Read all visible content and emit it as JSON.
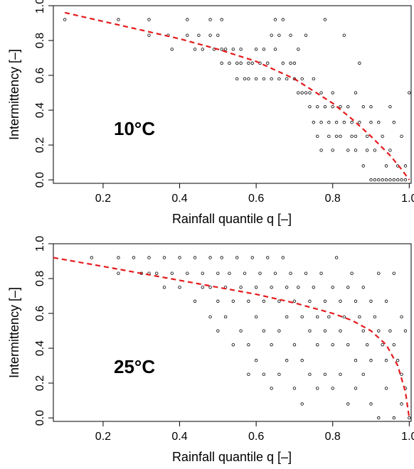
{
  "chart_data": [
    {
      "type": "scatter",
      "xlabel": "Rainfall quantile q [–]",
      "ylabel": "Intermittency [–]",
      "annotation": "10°C",
      "xlim": [
        0.07,
        1.005
      ],
      "ylim": [
        -0.02,
        1.0
      ],
      "xticks": [
        "0.2",
        "0.4",
        "0.6",
        "0.8",
        "1.0"
      ],
      "yticks": [
        "0.0",
        "0.2",
        "0.4",
        "0.6",
        "0.8",
        "1.0"
      ],
      "grid": false,
      "fit_color": "#e41a1c",
      "fit_curve": {
        "x": [
          0.1,
          0.2,
          0.3,
          0.4,
          0.5,
          0.6,
          0.7,
          0.8,
          0.85,
          0.9,
          0.95,
          0.98,
          1.0
        ],
        "y": [
          0.96,
          0.91,
          0.86,
          0.81,
          0.75,
          0.68,
          0.58,
          0.44,
          0.35,
          0.25,
          0.14,
          0.06,
          0.0
        ]
      },
      "points": {
        "x": [
          0.1,
          0.24,
          0.32,
          0.32,
          0.37,
          0.38,
          0.42,
          0.42,
          0.44,
          0.45,
          0.46,
          0.48,
          0.48,
          0.49,
          0.5,
          0.51,
          0.51,
          0.51,
          0.52,
          0.53,
          0.54,
          0.55,
          0.55,
          0.56,
          0.56,
          0.57,
          0.58,
          0.58,
          0.59,
          0.6,
          0.6,
          0.61,
          0.62,
          0.62,
          0.63,
          0.64,
          0.64,
          0.65,
          0.65,
          0.66,
          0.66,
          0.67,
          0.67,
          0.68,
          0.69,
          0.69,
          0.7,
          0.7,
          0.71,
          0.71,
          0.72,
          0.72,
          0.73,
          0.73,
          0.74,
          0.74,
          0.75,
          0.75,
          0.76,
          0.76,
          0.77,
          0.77,
          0.77,
          0.78,
          0.78,
          0.79,
          0.79,
          0.8,
          0.8,
          0.8,
          0.81,
          0.81,
          0.82,
          0.82,
          0.83,
          0.83,
          0.84,
          0.84,
          0.85,
          0.85,
          0.86,
          0.86,
          0.86,
          0.87,
          0.87,
          0.88,
          0.88,
          0.89,
          0.89,
          0.9,
          0.9,
          0.9,
          0.91,
          0.91,
          0.92,
          0.92,
          0.93,
          0.93,
          0.94,
          0.94,
          0.95,
          0.95,
          0.95,
          0.96,
          0.96,
          0.97,
          0.97,
          0.98,
          0.98,
          0.99,
          0.99,
          1.0
        ],
        "y": [
          0.92,
          0.92,
          0.92,
          0.83,
          0.83,
          0.75,
          0.92,
          0.83,
          0.75,
          0.83,
          0.75,
          0.92,
          0.83,
          0.75,
          0.83,
          0.92,
          0.75,
          0.67,
          0.75,
          0.67,
          0.75,
          0.67,
          0.58,
          0.75,
          0.67,
          0.58,
          0.67,
          0.58,
          0.67,
          0.75,
          0.58,
          0.67,
          0.58,
          0.75,
          0.67,
          0.83,
          0.58,
          0.92,
          0.75,
          0.83,
          0.58,
          0.92,
          0.67,
          0.58,
          0.67,
          0.83,
          0.67,
          0.58,
          0.75,
          0.5,
          0.58,
          0.5,
          0.83,
          0.5,
          0.5,
          0.42,
          0.58,
          0.33,
          0.42,
          0.25,
          0.5,
          0.33,
          0.17,
          0.42,
          0.92,
          0.25,
          0.33,
          0.42,
          0.5,
          0.17,
          0.25,
          0.33,
          0.42,
          0.25,
          0.83,
          0.33,
          0.17,
          0.42,
          0.25,
          0.33,
          0.5,
          0.17,
          0.25,
          0.67,
          0.33,
          0.42,
          0.08,
          0.25,
          0.17,
          0.33,
          0.42,
          0.0,
          0.17,
          0.0,
          0.33,
          0.0,
          0.25,
          0.0,
          0.08,
          0.0,
          0.42,
          0.17,
          0.0,
          0.33,
          0.0,
          0.08,
          0.0,
          0.25,
          0.0,
          0.08,
          0.0,
          0.5
        ]
      }
    },
    {
      "type": "scatter",
      "xlabel": "Rainfall quantile q [–]",
      "ylabel": "Intermittency [–]",
      "annotation": "25°C",
      "xlim": [
        0.07,
        1.005
      ],
      "ylim": [
        -0.02,
        1.0
      ],
      "xticks": [
        "0.2",
        "0.4",
        "0.6",
        "0.8",
        "1.0"
      ],
      "yticks": [
        "0.0",
        "0.2",
        "0.4",
        "0.6",
        "0.8",
        "1.0"
      ],
      "grid": false,
      "fit_color": "#e41a1c",
      "fit_curve": {
        "x": [
          0.07,
          0.2,
          0.3,
          0.4,
          0.5,
          0.6,
          0.7,
          0.8,
          0.85,
          0.9,
          0.94,
          0.97,
          0.99,
          1.0
        ],
        "y": [
          0.92,
          0.87,
          0.83,
          0.79,
          0.75,
          0.71,
          0.66,
          0.6,
          0.56,
          0.5,
          0.42,
          0.3,
          0.15,
          0.0
        ]
      },
      "points": {
        "x": [
          0.17,
          0.24,
          0.24,
          0.28,
          0.3,
          0.32,
          0.32,
          0.34,
          0.36,
          0.36,
          0.38,
          0.4,
          0.4,
          0.42,
          0.44,
          0.44,
          0.46,
          0.46,
          0.48,
          0.48,
          0.48,
          0.5,
          0.5,
          0.5,
          0.51,
          0.52,
          0.52,
          0.53,
          0.54,
          0.54,
          0.55,
          0.56,
          0.56,
          0.57,
          0.58,
          0.58,
          0.58,
          0.59,
          0.6,
          0.6,
          0.6,
          0.61,
          0.62,
          0.62,
          0.62,
          0.63,
          0.64,
          0.64,
          0.64,
          0.65,
          0.66,
          0.66,
          0.66,
          0.67,
          0.68,
          0.68,
          0.68,
          0.69,
          0.7,
          0.7,
          0.7,
          0.71,
          0.72,
          0.72,
          0.72,
          0.73,
          0.74,
          0.74,
          0.74,
          0.75,
          0.76,
          0.76,
          0.76,
          0.77,
          0.78,
          0.78,
          0.78,
          0.79,
          0.8,
          0.8,
          0.8,
          0.81,
          0.82,
          0.82,
          0.82,
          0.83,
          0.84,
          0.84,
          0.84,
          0.85,
          0.86,
          0.86,
          0.86,
          0.87,
          0.88,
          0.88,
          0.88,
          0.89,
          0.9,
          0.9,
          0.9,
          0.91,
          0.92,
          0.92,
          0.92,
          0.93,
          0.94,
          0.94,
          0.94,
          0.95,
          0.96,
          0.96,
          0.96,
          0.97,
          0.98,
          0.98,
          0.98,
          0.99,
          0.99,
          1.0
        ],
        "y": [
          0.92,
          0.92,
          0.83,
          0.92,
          0.83,
          0.92,
          0.83,
          0.83,
          0.92,
          0.75,
          0.83,
          0.92,
          0.75,
          0.83,
          0.92,
          0.67,
          0.83,
          0.75,
          0.92,
          0.75,
          0.58,
          0.83,
          0.67,
          0.5,
          0.92,
          0.75,
          0.58,
          0.83,
          0.67,
          0.42,
          0.92,
          0.75,
          0.5,
          0.83,
          0.67,
          0.42,
          0.25,
          0.92,
          0.75,
          0.58,
          0.33,
          0.83,
          0.67,
          0.5,
          0.25,
          0.92,
          0.75,
          0.42,
          0.17,
          0.83,
          0.67,
          0.5,
          0.25,
          0.92,
          0.75,
          0.58,
          0.33,
          0.83,
          0.67,
          0.42,
          0.17,
          0.75,
          0.58,
          0.33,
          0.08,
          0.83,
          0.67,
          0.5,
          0.25,
          0.75,
          0.58,
          0.42,
          0.17,
          0.83,
          0.67,
          0.5,
          0.25,
          0.58,
          0.75,
          0.42,
          0.17,
          0.92,
          0.67,
          0.5,
          0.25,
          0.58,
          0.75,
          0.42,
          0.08,
          0.83,
          0.67,
          0.33,
          0.17,
          0.58,
          0.75,
          0.5,
          0.25,
          0.42,
          0.67,
          0.33,
          0.08,
          0.58,
          0.83,
          0.5,
          0.0,
          0.42,
          0.67,
          0.33,
          0.17,
          0.5,
          0.83,
          0.42,
          0.0,
          0.33,
          0.58,
          0.25,
          0.08,
          0.5,
          0.17,
          0.0
        ]
      }
    }
  ]
}
